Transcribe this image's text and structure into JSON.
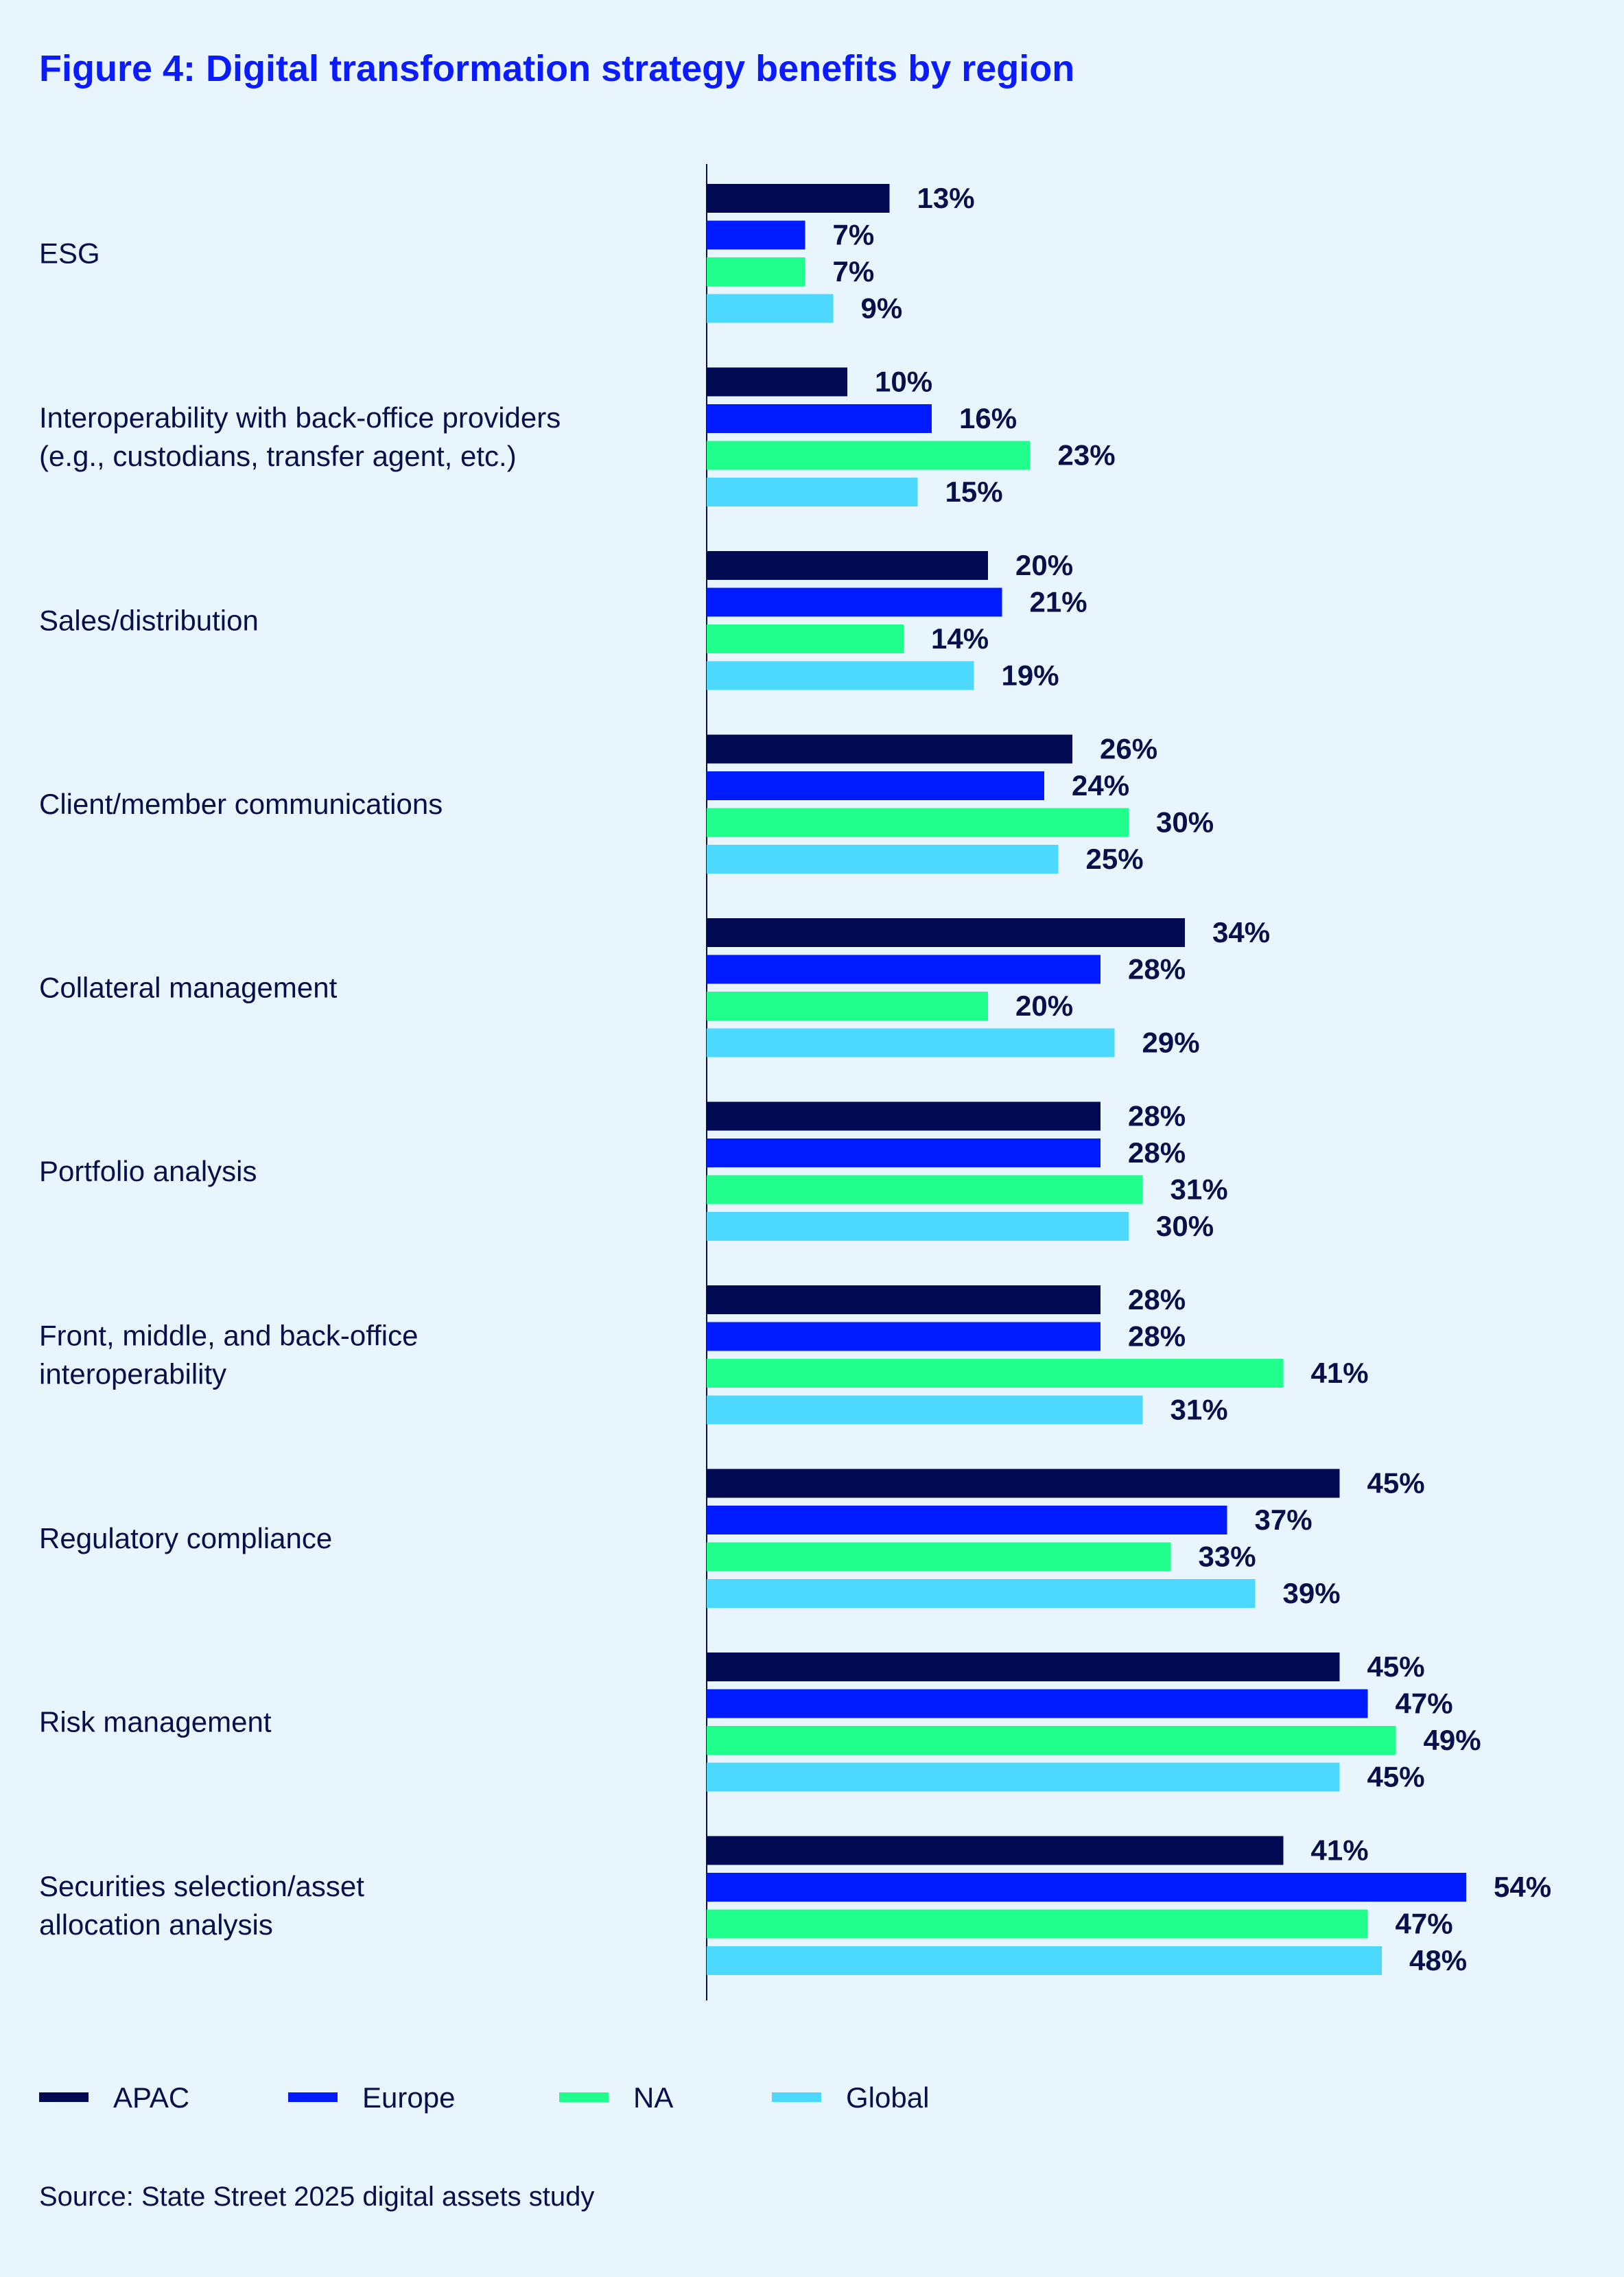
{
  "chart_data": {
    "type": "bar",
    "orientation": "horizontal",
    "title": "Figure 4: Digital transformation strategy benefits by region",
    "source": "Source: State Street 2025 digital assets study",
    "legend_position": "bottom-left",
    "grid": false,
    "xlim": [
      0,
      60
    ],
    "unit": "%",
    "categories": [
      [
        "ESG"
      ],
      [
        "Interoperability with back-office providers",
        "(e.g., custodians, transfer agent, etc.)"
      ],
      [
        "Sales/distribution"
      ],
      [
        "Client/member communications"
      ],
      [
        "Collateral management"
      ],
      [
        "Portfolio analysis"
      ],
      [
        "Front, middle, and back-office",
        "interoperability"
      ],
      [
        "Regulatory compliance"
      ],
      [
        "Risk management"
      ],
      [
        "Securities selection/asset",
        "allocation analysis"
      ]
    ],
    "series": [
      {
        "name": "APAC",
        "color": "#020a54",
        "values": [
          13,
          10,
          20,
          26,
          34,
          28,
          28,
          45,
          45,
          41
        ]
      },
      {
        "name": "Europe",
        "color": "#001bff",
        "values": [
          7,
          16,
          21,
          24,
          28,
          28,
          28,
          37,
          47,
          54
        ]
      },
      {
        "name": "NA",
        "color": "#20ff8c",
        "values": [
          7,
          23,
          14,
          30,
          20,
          31,
          41,
          33,
          49,
          47
        ]
      },
      {
        "name": "Global",
        "color": "#4dd9ff",
        "values": [
          9,
          15,
          19,
          25,
          29,
          30,
          31,
          39,
          45,
          48
        ]
      }
    ]
  }
}
